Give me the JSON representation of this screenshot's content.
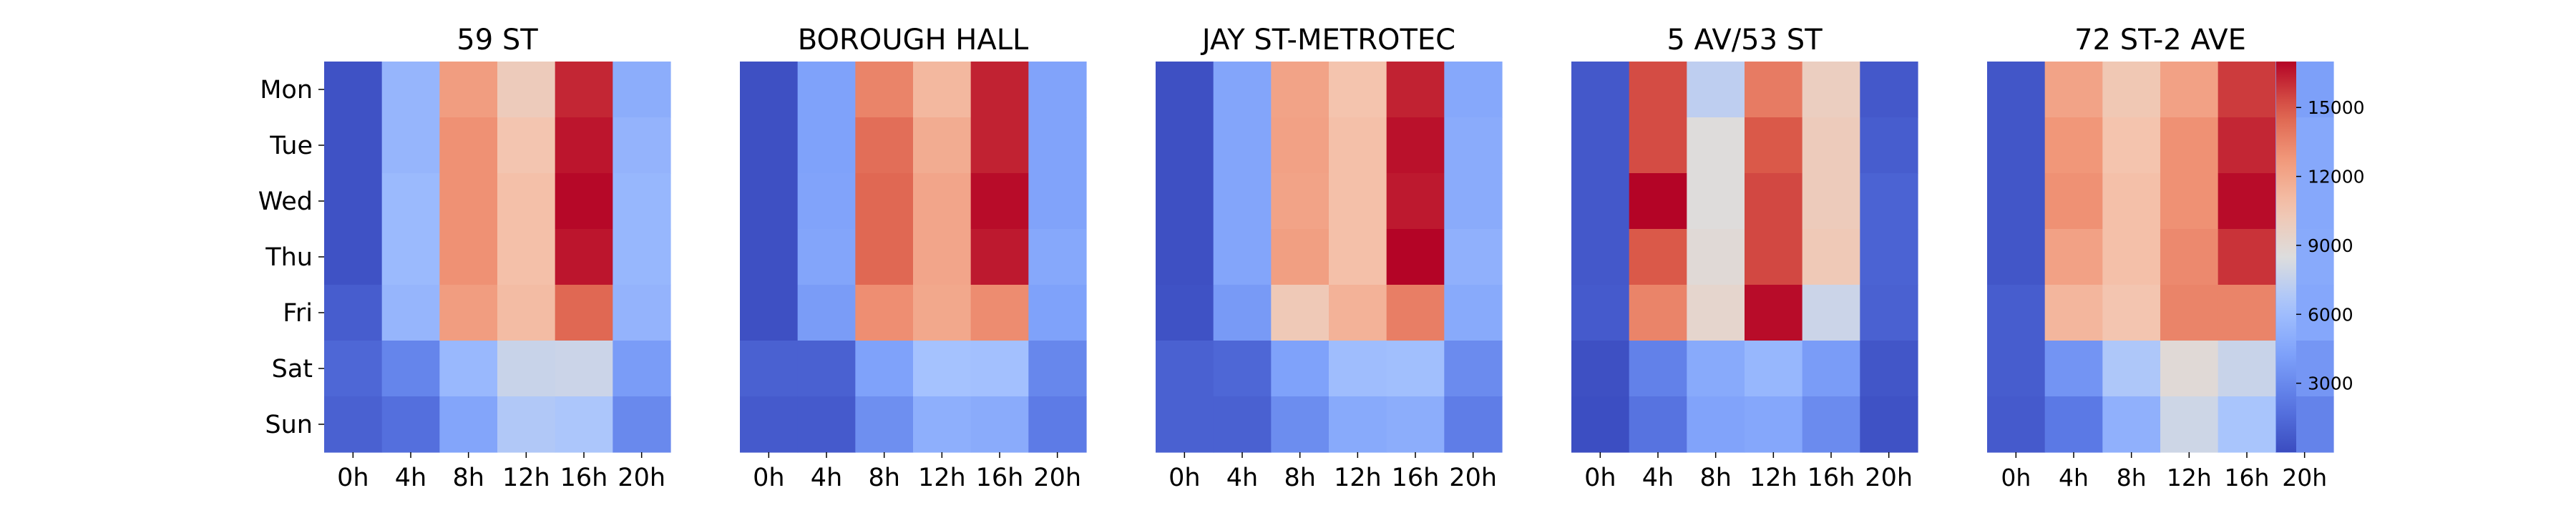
{
  "chart_data": {
    "type": "heatmap",
    "rows": [
      "Mon",
      "Tue",
      "Wed",
      "Thu",
      "Fri",
      "Sat",
      "Sun"
    ],
    "columns": [
      "0h",
      "4h",
      "8h",
      "12h",
      "16h",
      "20h"
    ],
    "value_range": [
      0,
      17000
    ],
    "colormap": "coolwarm",
    "colorbar": {
      "ticks": [
        3000,
        6000,
        9000,
        12000,
        15000
      ],
      "tick_labels": [
        "3000",
        "6000",
        "9000",
        "12000",
        "15000"
      ]
    },
    "panels": [
      {
        "title": "59 ST",
        "values": [
          [
            300,
            5500,
            12500,
            10000,
            16200,
            5000
          ],
          [
            300,
            5500,
            13000,
            10500,
            16600,
            5400
          ],
          [
            300,
            5800,
            13000,
            10800,
            16900,
            5600
          ],
          [
            300,
            5800,
            13000,
            10800,
            16600,
            5600
          ],
          [
            800,
            5500,
            12500,
            11000,
            14500,
            5400
          ],
          [
            1300,
            2800,
            5700,
            7700,
            7800,
            4000
          ],
          [
            1000,
            1700,
            4500,
            6800,
            6600,
            3000
          ]
        ]
      },
      {
        "title": "BOROUGH HALL",
        "values": [
          [
            200,
            4300,
            13500,
            11200,
            16300,
            4400
          ],
          [
            200,
            4300,
            14300,
            11800,
            16300,
            4400
          ],
          [
            200,
            4400,
            14500,
            12100,
            16800,
            4400
          ],
          [
            200,
            4500,
            14500,
            12100,
            16500,
            4700
          ],
          [
            200,
            4000,
            13100,
            12000,
            13200,
            4300
          ],
          [
            1000,
            1000,
            4300,
            6300,
            6200,
            2900
          ],
          [
            700,
            700,
            3300,
            5100,
            4900,
            2300
          ]
        ]
      },
      {
        "title": "JAY ST-METROTEC",
        "values": [
          [
            200,
            4500,
            12200,
            10600,
            16300,
            4700
          ],
          [
            200,
            4500,
            12300,
            10800,
            16700,
            4900
          ],
          [
            200,
            4500,
            12200,
            10800,
            16500,
            4900
          ],
          [
            200,
            4500,
            12400,
            10800,
            17000,
            5200
          ],
          [
            300,
            3900,
            10200,
            11500,
            13700,
            4800
          ],
          [
            1000,
            1300,
            4300,
            6000,
            6100,
            3100
          ],
          [
            1000,
            1000,
            3200,
            4800,
            5000,
            2400
          ]
        ]
      },
      {
        "title": "5 AV/53 ST",
        "values": [
          [
            600,
            15300,
            7300,
            13800,
            9800,
            600
          ],
          [
            600,
            15300,
            8600,
            15000,
            10000,
            800
          ],
          [
            600,
            17000,
            8600,
            15400,
            10000,
            1100
          ],
          [
            600,
            15000,
            8800,
            15400,
            10200,
            1100
          ],
          [
            700,
            13500,
            9200,
            16800,
            7800,
            1000
          ],
          [
            200,
            2600,
            4800,
            5600,
            4000,
            500
          ],
          [
            100,
            1900,
            4400,
            4600,
            3100,
            300
          ]
        ]
      },
      {
        "title": "72 ST-2 AVE",
        "values": [
          [
            500,
            12200,
            10300,
            12300,
            15700,
            4200
          ],
          [
            500,
            12800,
            10600,
            13000,
            16200,
            4700
          ],
          [
            500,
            13000,
            10800,
            13000,
            16800,
            4700
          ],
          [
            500,
            12300,
            10800,
            13300,
            15900,
            4800
          ],
          [
            800,
            11300,
            10500,
            13500,
            13500,
            4600
          ],
          [
            800,
            3600,
            6700,
            8800,
            7700,
            3700
          ],
          [
            700,
            2200,
            5200,
            7900,
            6500,
            2700
          ]
        ]
      }
    ]
  }
}
